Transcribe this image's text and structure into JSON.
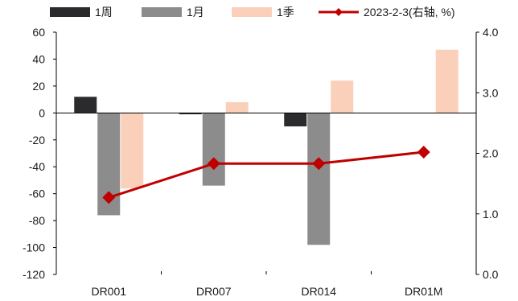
{
  "chart_data": {
    "type": "bar",
    "categories": [
      "DR001",
      "DR007",
      "DR014",
      "DR01M"
    ],
    "series": [
      {
        "name": "1周",
        "kind": "bar",
        "axis": "left",
        "color": "#2b2b2e",
        "values": [
          12,
          -1,
          -10,
          0
        ]
      },
      {
        "name": "1月",
        "kind": "bar",
        "axis": "left",
        "color": "#8c8c8c",
        "values": [
          -76,
          -54,
          -98,
          0
        ]
      },
      {
        "name": "1季",
        "kind": "bar",
        "axis": "left",
        "color": "#fbd0bb",
        "values": [
          -56,
          8,
          24,
          47
        ]
      },
      {
        "name": "2023-2-3(右轴, %)",
        "kind": "line",
        "axis": "right",
        "color": "#c00000",
        "values": [
          1.27,
          1.83,
          1.83,
          2.02
        ]
      }
    ],
    "y_left": {
      "ylim": [
        -120,
        60
      ],
      "ticks": [
        "60",
        "40",
        "20",
        "0",
        "-20",
        "-40",
        "-60",
        "-80",
        "-100",
        "-120"
      ]
    },
    "y_right": {
      "ylim": [
        0,
        4
      ],
      "ticks": [
        "4.0",
        "3.0",
        "2.0",
        "1.0",
        "0.0"
      ]
    },
    "legend_position": "top",
    "grid": false
  }
}
